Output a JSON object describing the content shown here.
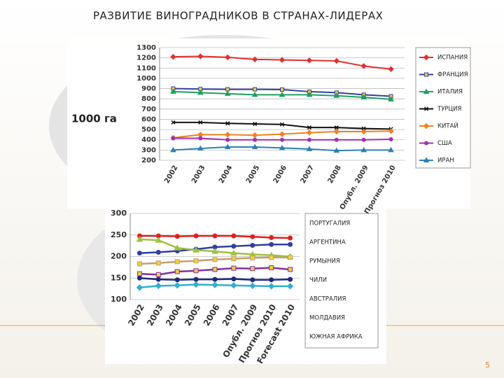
{
  "title": "РАЗВИТИЕ ВИНОГРАДНИКОВ В СТРАНАХ-ЛИДЕРАХ",
  "page_number": "5",
  "chart_data": [
    {
      "type": "line",
      "y_label": "1000 га",
      "categories": [
        "2002",
        "2003",
        "2004",
        "2005",
        "2006",
        "2007",
        "2008",
        "Опубл. 2009",
        "Прогноз 2010"
      ],
      "ylim": [
        200,
        1300
      ],
      "yticks": [
        200,
        300,
        400,
        500,
        600,
        700,
        800,
        900,
        1000,
        1100,
        1200,
        1300
      ],
      "grid": true,
      "series": [
        {
          "name": "ИСПАНИЯ",
          "color": "#e03030",
          "marker": "diamond",
          "values": [
            1210,
            1215,
            1205,
            1185,
            1180,
            1175,
            1170,
            1120,
            1090
          ]
        },
        {
          "name": "ФРАНЦИЯ",
          "color": "#3040a0",
          "marker": "square",
          "values": [
            900,
            895,
            893,
            893,
            890,
            870,
            860,
            840,
            825
          ]
        },
        {
          "name": "ИТАЛИЯ",
          "color": "#20a060",
          "marker": "triangle",
          "values": [
            870,
            860,
            850,
            840,
            840,
            840,
            830,
            815,
            795
          ]
        },
        {
          "name": "ТУРЦИЯ",
          "color": "#111111",
          "marker": "cross",
          "values": [
            570,
            570,
            560,
            555,
            550,
            520,
            520,
            510,
            505
          ]
        },
        {
          "name": "КИТАЙ",
          "color": "#f08020",
          "marker": "diamond",
          "values": [
            420,
            450,
            450,
            445,
            455,
            470,
            480,
            480,
            485
          ]
        },
        {
          "name": "США",
          "color": "#a030b0",
          "marker": "circle",
          "values": [
            415,
            415,
            400,
            400,
            400,
            400,
            400,
            400,
            405
          ]
        },
        {
          "name": "ИРАН",
          "color": "#3080b0",
          "marker": "triangle",
          "values": [
            300,
            315,
            330,
            330,
            320,
            310,
            295,
            300,
            300
          ]
        }
      ]
    },
    {
      "type": "line",
      "categories": [
        "2002",
        "2003",
        "2004",
        "2005",
        "2006",
        "2007",
        "Опубл. 2009",
        "Прогноз 2010",
        "Forecast 2010"
      ],
      "ylim": [
        100,
        300
      ],
      "yticks": [
        100,
        150,
        200,
        250,
        300
      ],
      "grid": true,
      "series": [
        {
          "name": "ПОРТУГАЛИЯ",
          "color": "#e02020",
          "marker": "circle",
          "values": [
            248,
            248,
            247,
            248,
            248,
            248,
            246,
            244,
            243
          ]
        },
        {
          "name": "АРГЕНТИНА",
          "color": "#3040a0",
          "marker": "circle",
          "values": [
            208,
            210,
            213,
            217,
            222,
            224,
            226,
            228,
            228
          ]
        },
        {
          "name": "РУМЫНИЯ",
          "color": "#a0c040",
          "marker": "triangle",
          "values": [
            240,
            238,
            220,
            215,
            212,
            208,
            205,
            203,
            200
          ]
        },
        {
          "name": "ЧИЛИ",
          "color": "#c0a070",
          "marker": "square",
          "values": [
            183,
            185,
            188,
            190,
            193,
            195,
            197,
            198,
            198
          ]
        },
        {
          "name": "АВСТРАЛИЯ",
          "color": "#8030a0",
          "marker": "square",
          "values": [
            160,
            158,
            165,
            167,
            170,
            173,
            172,
            174,
            170
          ]
        },
        {
          "name": "МОЛДАВИЯ",
          "color": "#202880",
          "marker": "circle",
          "values": [
            150,
            147,
            146,
            147,
            147,
            148,
            146,
            146,
            147
          ]
        },
        {
          "name": "ЮЖНАЯ АФРИКА",
          "color": "#30b0d0",
          "marker": "diamond",
          "values": [
            128,
            132,
            133,
            135,
            134,
            133,
            132,
            131,
            131
          ]
        }
      ]
    }
  ]
}
